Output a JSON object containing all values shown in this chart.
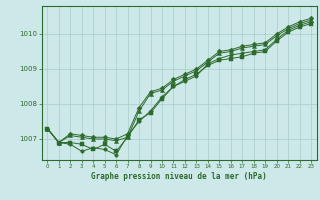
{
  "background_color": "#cce8e8",
  "plot_bg_color": "#cce8e8",
  "grid_color": "#aacccc",
  "line_color": "#2d6a2d",
  "marker_color": "#2d6a2d",
  "title": "Graphe pression niveau de la mer (hPa)",
  "title_color": "#2d6a2d",
  "xlim": [
    -0.5,
    23.5
  ],
  "ylim": [
    1006.4,
    1010.8
  ],
  "yticks": [
    1007,
    1008,
    1009,
    1010
  ],
  "xticks": [
    0,
    1,
    2,
    3,
    4,
    5,
    6,
    7,
    8,
    9,
    10,
    11,
    12,
    13,
    14,
    15,
    16,
    17,
    18,
    19,
    20,
    21,
    22,
    23
  ],
  "series": [
    [
      1007.3,
      1006.9,
      1006.9,
      1006.85,
      1006.7,
      1006.85,
      1006.65,
      1007.05,
      1007.55,
      1007.75,
      1008.15,
      1008.5,
      1008.7,
      1008.85,
      1009.1,
      1009.25,
      1009.3,
      1009.35,
      1009.45,
      1009.5,
      1009.8,
      1010.05,
      1010.2,
      1010.3
    ],
    [
      1007.3,
      1006.9,
      1006.85,
      1006.65,
      1006.75,
      1006.7,
      1006.55,
      1007.1,
      1007.5,
      1007.8,
      1008.2,
      1008.5,
      1008.65,
      1008.8,
      1009.15,
      1009.3,
      1009.4,
      1009.45,
      1009.5,
      1009.55,
      1009.85,
      1010.1,
      1010.25,
      1010.35
    ],
    [
      1007.3,
      1006.9,
      1007.1,
      1007.05,
      1007.0,
      1007.0,
      1006.95,
      1007.05,
      1007.8,
      1008.3,
      1008.4,
      1008.65,
      1008.8,
      1008.95,
      1009.2,
      1009.45,
      1009.5,
      1009.6,
      1009.65,
      1009.7,
      1009.95,
      1010.15,
      1010.3,
      1010.4
    ],
    [
      1007.3,
      1006.9,
      1007.15,
      1007.1,
      1007.05,
      1007.05,
      1007.0,
      1007.15,
      1007.9,
      1008.35,
      1008.45,
      1008.7,
      1008.85,
      1009.0,
      1009.25,
      1009.5,
      1009.55,
      1009.65,
      1009.7,
      1009.75,
      1010.0,
      1010.2,
      1010.35,
      1010.45
    ]
  ],
  "markers": [
    "s",
    "o",
    "^",
    "D"
  ],
  "markersizes": [
    2.5,
    2.5,
    3.0,
    2.5
  ]
}
